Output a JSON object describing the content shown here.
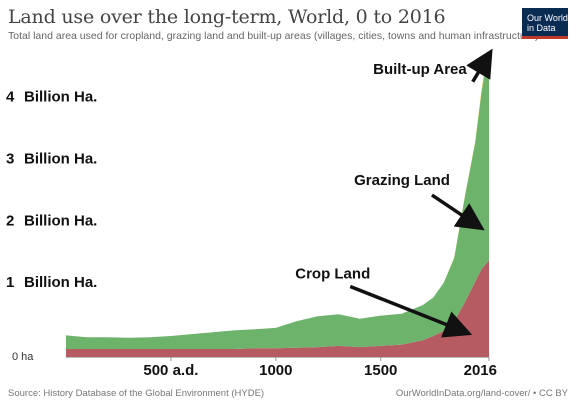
{
  "header": {
    "title": "Land use over the long-term, World, 0 to 2016",
    "subtitle": "Total land area used for cropland, grazing land and built-up areas (villages, cities, towns and human infrastructure).",
    "logo_text": "Our World in Data"
  },
  "footer": {
    "source": "Source: History Database of the Global Environment (HYDE)",
    "credit": "OurWorldInData.org/land-cover/ • CC BY"
  },
  "colors": {
    "cropland": "#b75b62",
    "grazing": "#6db36c",
    "builtup": "#e8d34a",
    "arrow": "#111111"
  },
  "chart_data": {
    "type": "area",
    "title": "Land use over the long-term, World, 0 to 2016",
    "xlim": [
      0,
      2016
    ],
    "ylim": [
      0,
      4.9
    ],
    "x": [
      0,
      100,
      200,
      300,
      400,
      500,
      600,
      700,
      800,
      900,
      1000,
      1100,
      1200,
      1300,
      1400,
      1500,
      1600,
      1700,
      1750,
      1800,
      1850,
      1900,
      1950,
      1980,
      2000,
      2016
    ],
    "series": [
      {
        "name": "Crop Land",
        "values": [
          0.13,
          0.13,
          0.13,
          0.13,
          0.13,
          0.13,
          0.13,
          0.13,
          0.13,
          0.14,
          0.14,
          0.15,
          0.16,
          0.18,
          0.16,
          0.18,
          0.2,
          0.27,
          0.34,
          0.42,
          0.58,
          0.88,
          1.22,
          1.42,
          1.5,
          1.56
        ]
      },
      {
        "name": "Grazing Land",
        "values": [
          0.22,
          0.19,
          0.19,
          0.18,
          0.19,
          0.21,
          0.24,
          0.27,
          0.3,
          0.31,
          0.33,
          0.43,
          0.5,
          0.51,
          0.46,
          0.49,
          0.5,
          0.57,
          0.62,
          0.78,
          1.02,
          1.7,
          2.25,
          2.85,
          3.2,
          3.28
        ]
      },
      {
        "name": "Built-up Area",
        "values": [
          0,
          0,
          0,
          0,
          0,
          0,
          0,
          0,
          0,
          0,
          0,
          0,
          0,
          0,
          0,
          0,
          0,
          0,
          0,
          0,
          0.01,
          0.01,
          0.02,
          0.04,
          0.05,
          0.06
        ]
      }
    ],
    "y_ticks": [
      {
        "value": 0,
        "label": "0 ha"
      },
      {
        "value": 1,
        "label": "1 Billion Ha."
      },
      {
        "value": 2,
        "label": "2 Billion Ha."
      },
      {
        "value": 3,
        "label": "3 Billion Ha."
      },
      {
        "value": 4,
        "label": "4 Billion Ha."
      }
    ],
    "x_ticks": [
      {
        "value": 500,
        "label": "500 a.d."
      },
      {
        "value": 1000,
        "label": "1000"
      },
      {
        "value": 1500,
        "label": "1500"
      },
      {
        "value": 2016,
        "label": "2016"
      }
    ],
    "annotations": [
      {
        "text": "Built-up Area",
        "x": 1910,
        "y": 4.58,
        "target_x": 2016,
        "target_y": 4.89
      },
      {
        "text": "Grazing Land",
        "x": 1830,
        "y": 2.78,
        "target_x": 1968,
        "target_y": 2.11
      },
      {
        "text": "Crop Land",
        "x": 1450,
        "y": 1.27,
        "target_x": 1905,
        "target_y": 0.4
      }
    ],
    "grid": false,
    "legend": "none"
  }
}
